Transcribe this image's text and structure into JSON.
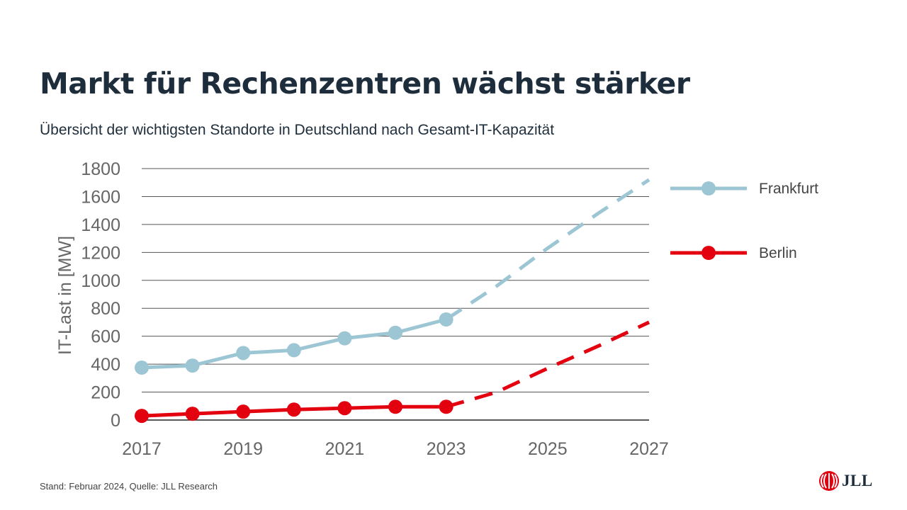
{
  "header": {
    "title": "Markt für Rechenzentren wächst stärker",
    "subtitle": "Übersicht der wichtigsten Standorte in Deutschland nach Gesamt-IT-Kapazität"
  },
  "footer": {
    "note": "Stand: Februar 2024, Quelle: JLL Research",
    "logo_text": "JLL",
    "logo_icon": "jll-logo-icon"
  },
  "colors": {
    "frankfurt": "#9dc6d5",
    "berlin": "#e3000f",
    "grid": "#555555",
    "axis_text": "#666666",
    "title": "#1e2d3b"
  },
  "chart_data": {
    "type": "line",
    "ylabel": "IT-Last in [MW]",
    "xlabel": "",
    "ylim": [
      0,
      1800
    ],
    "yticks": [
      0,
      200,
      400,
      600,
      800,
      1000,
      1200,
      1400,
      1600,
      1800
    ],
    "xlim": [
      2017,
      2027
    ],
    "xticks": [
      2017,
      2019,
      2021,
      2023,
      2025,
      2027
    ],
    "grid": true,
    "legend_position": "right",
    "series": [
      {
        "name": "Frankfurt",
        "color": "#9dc6d5",
        "actual": {
          "x": [
            2017,
            2018,
            2019,
            2020,
            2021,
            2022,
            2023
          ],
          "y": [
            375,
            390,
            480,
            500,
            585,
            625,
            720
          ]
        },
        "forecast": {
          "x": [
            2023,
            2024,
            2025,
            2026,
            2027
          ],
          "y": [
            720,
            960,
            1230,
            1480,
            1720
          ]
        }
      },
      {
        "name": "Berlin",
        "color": "#e3000f",
        "actual": {
          "x": [
            2017,
            2018,
            2019,
            2020,
            2021,
            2022,
            2023
          ],
          "y": [
            30,
            45,
            60,
            75,
            85,
            95,
            95
          ]
        },
        "forecast": {
          "x": [
            2023,
            2024,
            2025,
            2026,
            2027
          ],
          "y": [
            95,
            200,
            370,
            530,
            700
          ]
        }
      }
    ]
  }
}
